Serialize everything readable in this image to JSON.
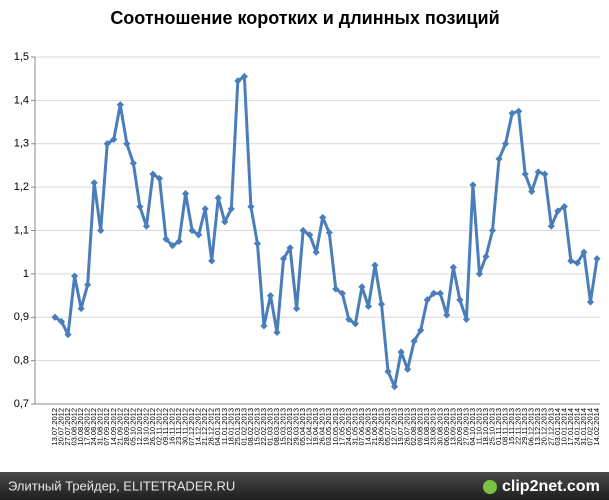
{
  "chart_data": {
    "type": "line",
    "title": "Соотношение коротких и длинных позиций",
    "categories": [
      "13.07.2012",
      "20.07.2012",
      "27.07.2012",
      "03.08.2012",
      "10.08.2012",
      "17.08.2012",
      "24.08.2012",
      "31.08.2012",
      "07.09.2012",
      "14.09.2012",
      "21.09.2012",
      "28.09.2012",
      "05.10.2012",
      "12.10.2012",
      "19.10.2012",
      "26.10.2012",
      "02.11.2012",
      "09.11.2012",
      "16.11.2012",
      "23.11.2012",
      "30.11.2012",
      "07.12.2012",
      "14.12.2012",
      "21.12.2012",
      "28.12.2012",
      "04.01.2013",
      "11.01.2013",
      "18.01.2013",
      "25.01.2013",
      "01.02.2013",
      "08.02.2013",
      "15.02.2013",
      "22.02.2013",
      "01.03.2013",
      "08.03.2013",
      "15.03.2013",
      "22.03.2013",
      "29.03.2013",
      "05.04.2013",
      "12.04.2013",
      "19.04.2013",
      "26.04.2013",
      "03.05.2013",
      "10.05.2013",
      "17.05.2013",
      "24.05.2013",
      "31.05.2013",
      "07.06.2013",
      "14.06.2013",
      "21.06.2013",
      "28.06.2013",
      "05.07.2013",
      "12.07.2013",
      "19.07.2013",
      "26.07.2013",
      "02.08.2013",
      "09.08.2013",
      "16.08.2013",
      "23.08.2013",
      "30.08.2013",
      "06.09.2013",
      "13.09.2013",
      "20.09.2013",
      "27.09.2013",
      "04.10.2013",
      "11.10.2013",
      "18.10.2013",
      "25.10.2013",
      "01.11.2013",
      "08.11.2013",
      "15.11.2013",
      "22.11.2013",
      "29.11.2013",
      "06.12.2013",
      "13.12.2013",
      "20.12.2013",
      "27.12.2013",
      "03.01.2014",
      "10.01.2014",
      "17.01.2014",
      "24.01.2014",
      "31.01.2014",
      "07.02.2014",
      "14.02.2014"
    ],
    "series": [
      {
        "name": "Соотношение",
        "color": "#4a7ebb",
        "values": [
          0.9,
          0.89,
          0.86,
          0.995,
          0.92,
          0.975,
          1.21,
          1.1,
          1.3,
          1.31,
          1.39,
          1.3,
          1.255,
          1.155,
          1.11,
          1.23,
          1.22,
          1.08,
          1.065,
          1.075,
          1.185,
          1.1,
          1.09,
          1.15,
          1.03,
          1.175,
          1.12,
          1.15,
          1.445,
          1.455,
          1.155,
          1.07,
          0.88,
          0.95,
          0.865,
          1.035,
          1.06,
          0.92,
          1.1,
          1.09,
          1.05,
          1.13,
          1.095,
          0.965,
          0.955,
          0.895,
          0.885,
          0.97,
          0.925,
          1.02,
          0.93,
          0.775,
          0.74,
          0.82,
          0.78,
          0.845,
          0.87,
          0.94,
          0.955,
          0.955,
          0.905,
          1.015,
          0.94,
          0.895,
          1.205,
          1.0,
          1.04,
          1.1,
          1.265,
          1.3,
          1.37,
          1.375,
          1.23,
          1.19,
          1.235,
          1.23,
          1.11,
          1.145,
          1.155,
          1.03,
          1.025,
          1.05,
          0.935,
          1.035
        ]
      }
    ],
    "ylim": [
      0.7,
      1.5
    ],
    "yticks": [
      {
        "value": 0.7,
        "label": "0,7"
      },
      {
        "value": 0.8,
        "label": "0,8"
      },
      {
        "value": 0.9,
        "label": "0,9"
      },
      1,
      {
        "value": 1.1,
        "label": "1,1"
      },
      {
        "value": 1.2,
        "label": "1,2"
      },
      {
        "value": 1.3,
        "label": "1,3"
      },
      {
        "value": 1.4,
        "label": "1,4"
      },
      {
        "value": 1.5,
        "label": "1,5"
      }
    ],
    "grid": true
  },
  "footer": {
    "source": "Элитный Трейдер, ELITETRADER.RU",
    "logo": "clip2net.com"
  }
}
